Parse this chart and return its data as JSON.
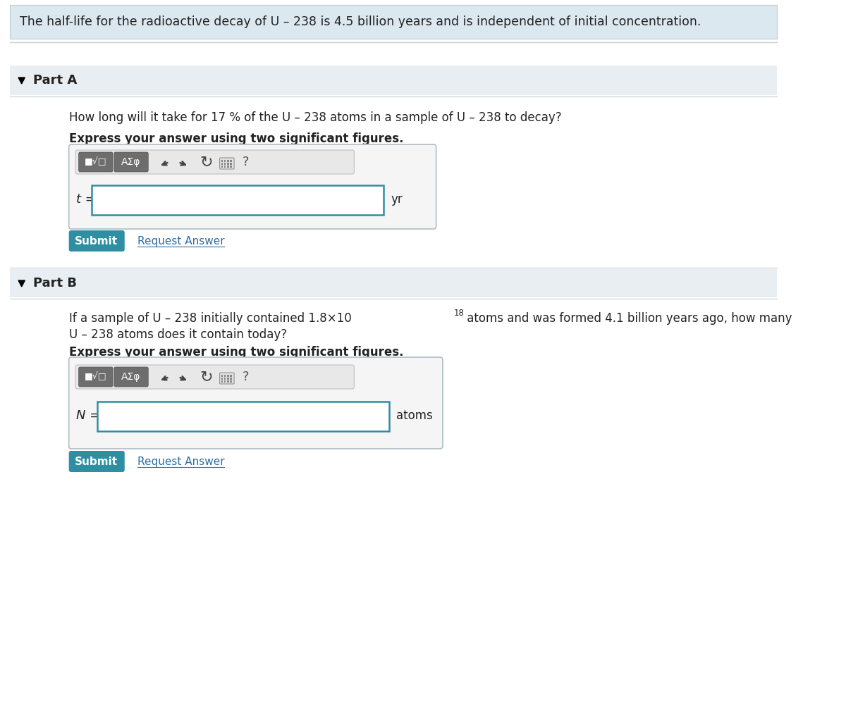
{
  "bg_color": "#f0f4f7",
  "white_bg": "#ffffff",
  "header_bg": "#dce8f0",
  "part_header_bg": "#e8eef2",
  "teal_color": "#2e8fa3",
  "submit_color": "#2e8fa3",
  "border_color": "#c0cdd4",
  "input_border": "#2e8fa3",
  "text_color": "#222222",
  "link_color": "#2e6fa3",
  "header_text": "The half-life for the radioactive decay of U – 238 is 4.5 billion years and is independent of initial concentration.",
  "partA_label": "Part A",
  "partA_question": "How long will it take for 17 % of the U – 238 atoms in a sample of U – 238 to decay?",
  "partA_express": "Express your answer using two significant figures.",
  "partA_var": "t =",
  "partA_unit": "yr",
  "partB_label": "Part B",
  "partB_question_1": "If a sample of U – 238 initially contained 1.8×10",
  "partB_superscript": "18",
  "partB_question_2": " atoms and was formed 4.1 billion years ago, how many",
  "partB_question_3": "U – 238 atoms does it contain today?",
  "partB_express": "Express your answer using two significant figures.",
  "partB_var": "N =",
  "partB_unit": "atoms",
  "submit_text": "Submit",
  "request_answer_text": "Request Answer",
  "question_mark": "?"
}
